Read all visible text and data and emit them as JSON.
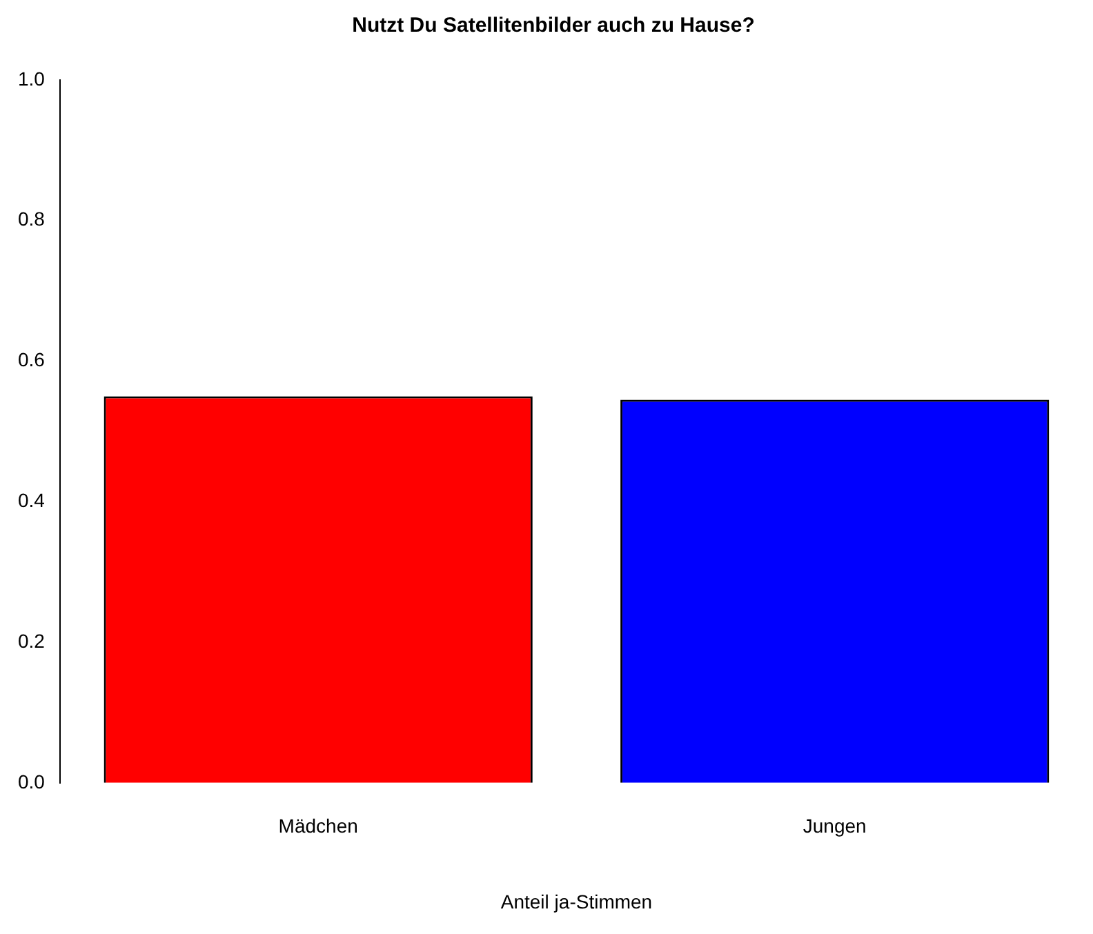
{
  "chart_data": {
    "type": "bar",
    "title": "Nutzt Du Satellitenbilder auch zu Hause?",
    "xlabel": "Anteil ja-Stimmen",
    "categories": [
      "Mädchen",
      "Jungen"
    ],
    "values": [
      0.55,
      0.545
    ],
    "colors": [
      "#ff0000",
      "#0000ff"
    ],
    "ylim": [
      0,
      1
    ],
    "yticks": [
      {
        "value": 0,
        "label": "0.0"
      },
      0.2,
      0.4,
      0.6,
      0.8,
      {
        "value": 1,
        "label": "1.0"
      }
    ],
    "grid": false,
    "legend": false
  }
}
